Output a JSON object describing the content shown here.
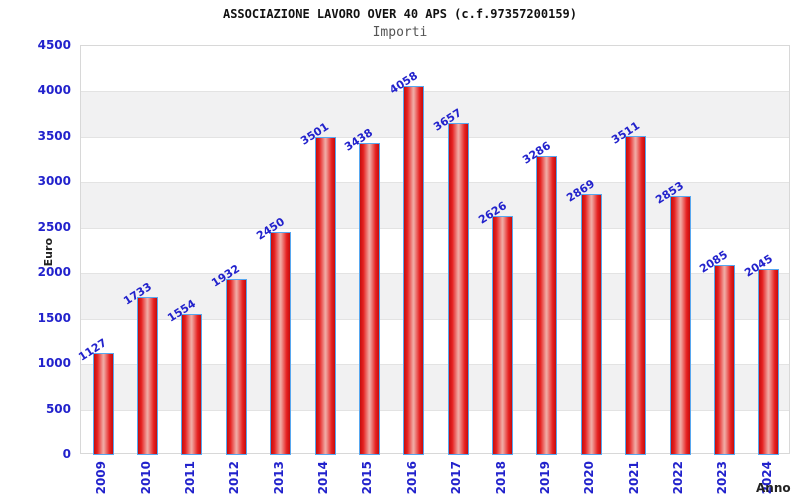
{
  "chart_data": {
    "type": "bar",
    "title": "ASSOCIAZIONE LAVORO OVER 40 APS (c.f.97357200159)",
    "subtitle": "Importi",
    "xlabel": "Anno",
    "ylabel": "Euro",
    "categories": [
      "2009",
      "2010",
      "2011",
      "2012",
      "2013",
      "2014",
      "2015",
      "2016",
      "2017",
      "2018",
      "2019",
      "2020",
      "2021",
      "2022",
      "2023",
      "2024"
    ],
    "values": [
      1127,
      1733,
      1554,
      1932,
      2450,
      3501,
      3438,
      4058,
      3657,
      2626,
      3286,
      2869,
      3511,
      2853,
      2085,
      2045
    ],
    "ylim": [
      0,
      4500
    ],
    "ytick_step": 500,
    "yticks": [
      0,
      500,
      1000,
      1500,
      2000,
      2500,
      3000,
      3500,
      4000,
      4500
    ],
    "legend": "none",
    "grid": "horizontal-bands-alternating",
    "colors": {
      "bar_edge": "#57a7ef",
      "bar_dark": "#c50d0d",
      "bar_mid": "#e62222",
      "bar_light": "#f0a8a2",
      "axis_text": "#2222cc",
      "value_label": "#2222cc",
      "band_gray": "#f1f1f2",
      "frame": "#d8d8d8",
      "gridline": "#e3e3e3",
      "title": "#111111",
      "subtitle": "#555555",
      "axis_name": "#222222"
    }
  }
}
